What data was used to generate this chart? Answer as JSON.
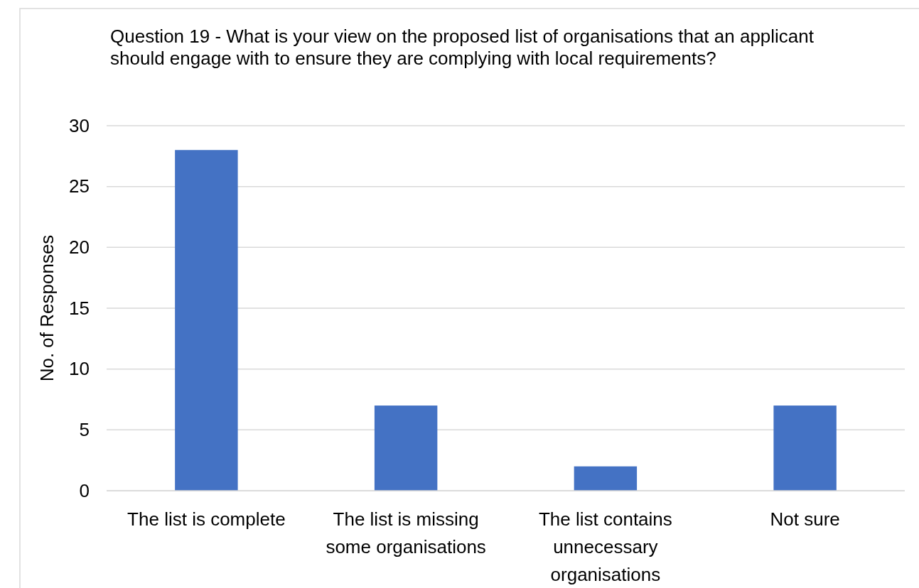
{
  "chart_data": {
    "type": "bar",
    "title": "Question 19 - What is your view on the proposed list of organisations that an applicant should engage with to ensure they are complying with local requirements?",
    "ylabel": "No. of Responses",
    "categories": [
      "The list is complete",
      "The list is missing some organisations",
      "The list contains unnecessary organisations",
      "Not sure"
    ],
    "values": [
      28,
      7,
      2,
      7
    ],
    "color": "#4472c4",
    "ylim": [
      0,
      30
    ],
    "yticks": [
      0,
      5,
      10,
      15,
      20,
      25,
      30
    ],
    "grid": "y"
  }
}
